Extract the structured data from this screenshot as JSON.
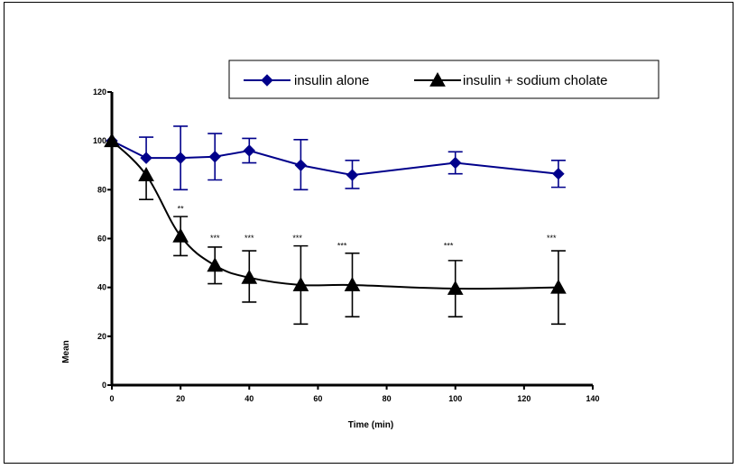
{
  "chart_data": {
    "type": "line",
    "xlabel": "Time (min)",
    "ylabel": "Mean",
    "xlim": [
      0,
      140
    ],
    "ylim": [
      0,
      120
    ],
    "x_ticks": [
      0,
      20,
      40,
      60,
      80,
      100,
      120,
      140
    ],
    "y_ticks": [
      0,
      20,
      40,
      60,
      80,
      100,
      120
    ],
    "grid": false,
    "legend_position": "top-right",
    "series": [
      {
        "name": "insulin alone",
        "color": "#00008B",
        "marker": "diamond",
        "smooth": false,
        "x": [
          0,
          10,
          20,
          30,
          40,
          55,
          70,
          100,
          130
        ],
        "y": [
          100,
          93,
          93,
          93.5,
          96,
          90,
          86,
          91,
          86.5
        ],
        "err_up": [
          0,
          8.5,
          13,
          9.5,
          5,
          10.5,
          6,
          4.5,
          5.5
        ],
        "err_down": [
          0,
          0,
          13,
          9.5,
          5,
          10,
          5.5,
          4.5,
          5.5
        ]
      },
      {
        "name": "insulin + sodium cholate",
        "color": "#000000",
        "marker": "triangle",
        "smooth": true,
        "x": [
          0,
          10,
          20,
          30,
          40,
          55,
          70,
          100,
          130
        ],
        "y": [
          100,
          86,
          61,
          49,
          44,
          41,
          41,
          39.5,
          40
        ],
        "err_up": [
          0,
          0,
          8,
          7.5,
          11,
          16,
          13,
          11.5,
          15
        ],
        "err_down": [
          0,
          10,
          8,
          7.5,
          10,
          16,
          13,
          11.5,
          15
        ]
      }
    ],
    "annotations": [
      {
        "text": "**",
        "x": 20,
        "y": 71
      },
      {
        "text": "***",
        "x": 30,
        "y": 59
      },
      {
        "text": "***",
        "x": 40,
        "y": 59
      },
      {
        "text": "***",
        "x": 54,
        "y": 59
      },
      {
        "text": "***",
        "x": 67,
        "y": 56
      },
      {
        "text": "***",
        "x": 98,
        "y": 56
      },
      {
        "text": "***",
        "x": 128,
        "y": 59
      }
    ]
  }
}
